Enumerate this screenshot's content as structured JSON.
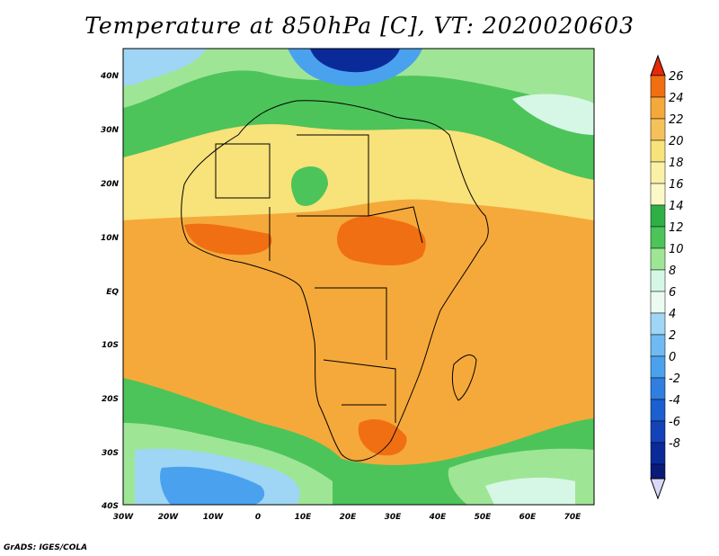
{
  "title": "Temperature at 850hPa [C], VT: 2020020603",
  "credit": "GrADS: IGES/COLA",
  "colors": {
    "ocean_warm": "#f5a93a",
    "land_warm": "#f5a93a",
    "hot": "#f06f12",
    "mild": "#f8e27a",
    "cool_green": "#4cc45a",
    "light_green": "#9fe596",
    "pale": "#d6f7e6",
    "blue_light": "#9fd6f5",
    "blue_mid": "#4aa2ee",
    "blue_dark": "#0b2a9a"
  },
  "map": {
    "lat_labels": [
      "40N",
      "30N",
      "20N",
      "10N",
      "EQ",
      "10S",
      "20S",
      "30S",
      "40S"
    ],
    "lon_labels": [
      "30W",
      "20W",
      "10W",
      "0",
      "10E",
      "20E",
      "30E",
      "40E",
      "50E",
      "60E",
      "70E"
    ]
  },
  "colorbar": {
    "labels": [
      "26",
      "24",
      "22",
      "20",
      "18",
      "16",
      "14",
      "12",
      "10",
      "8",
      "6",
      "4",
      "2",
      "0",
      "-2",
      "-4",
      "-6",
      "-8"
    ],
    "colors": [
      "#e42a0a",
      "#f06f12",
      "#f5a93a",
      "#f6c15a",
      "#f8e27a",
      "#f9f2a6",
      "#2fb047",
      "#4cc45a",
      "#9fe596",
      "#d6f7e6",
      "#9fd6f5",
      "#6fbaf2",
      "#4aa2ee",
      "#2f7fe0",
      "#1c5fd0",
      "#1442b8",
      "#0b2a9a",
      "#0a1a78",
      "#d8d8f8"
    ]
  }
}
